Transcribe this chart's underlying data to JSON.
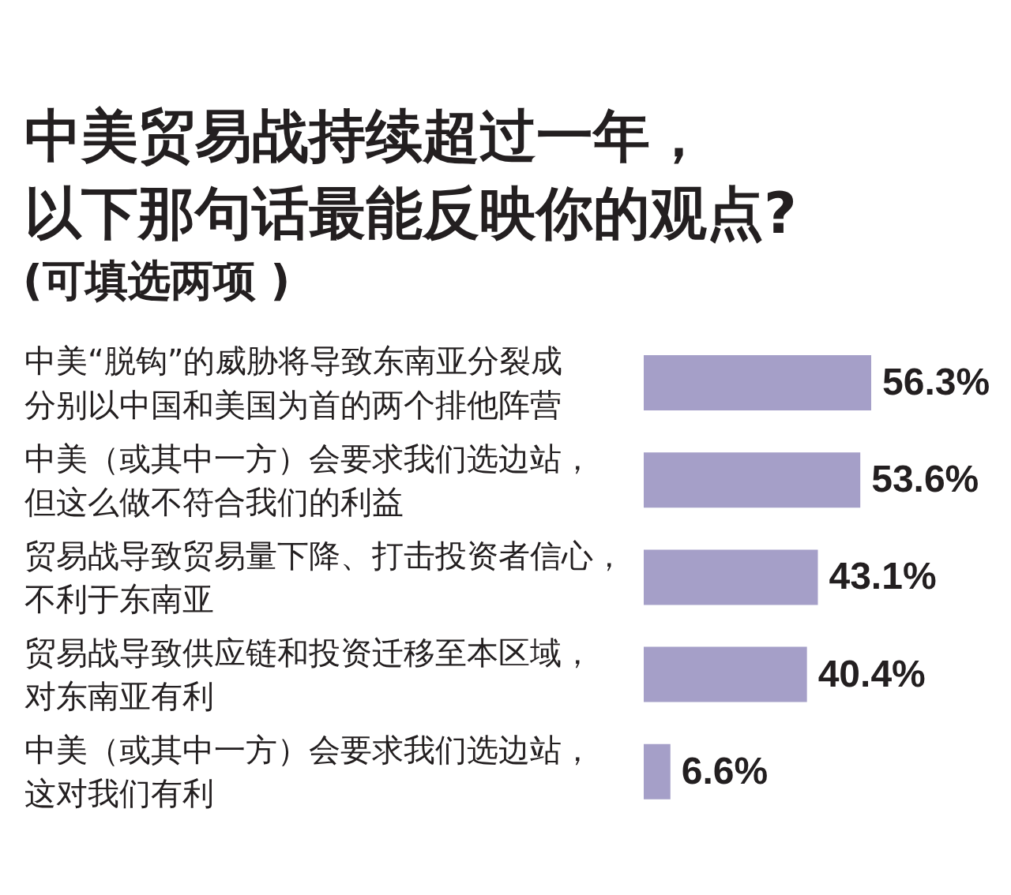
{
  "chart_data": {
    "type": "bar",
    "orientation": "horizontal",
    "title": "中美贸易战持续超过一年，以下那句话最能反映你的观点?",
    "subtitle": "(可填选两项 )",
    "categories": [
      "中美“脱钩”的威胁将导致东南亚分裂成分别以中国和美国为首的两个排他阵营",
      "中美（或其中一方）会要求我们选边站，但这么做不符合我们的利益",
      "贸易战导致贸易量下降、打击投资者信心，不利于东南亚",
      "贸易战导致供应链和投资迁移至本区域，对东南亚有利",
      "中美（或其中一方）会要求我们选边站，这对我们有利"
    ],
    "values": [
      56.3,
      53.6,
      43.1,
      40.4,
      6.6
    ],
    "color": "#a59fc8",
    "value_labels": [
      "56.3%",
      "53.6%",
      "43.1%",
      "40.4%",
      "6.6%"
    ]
  }
}
